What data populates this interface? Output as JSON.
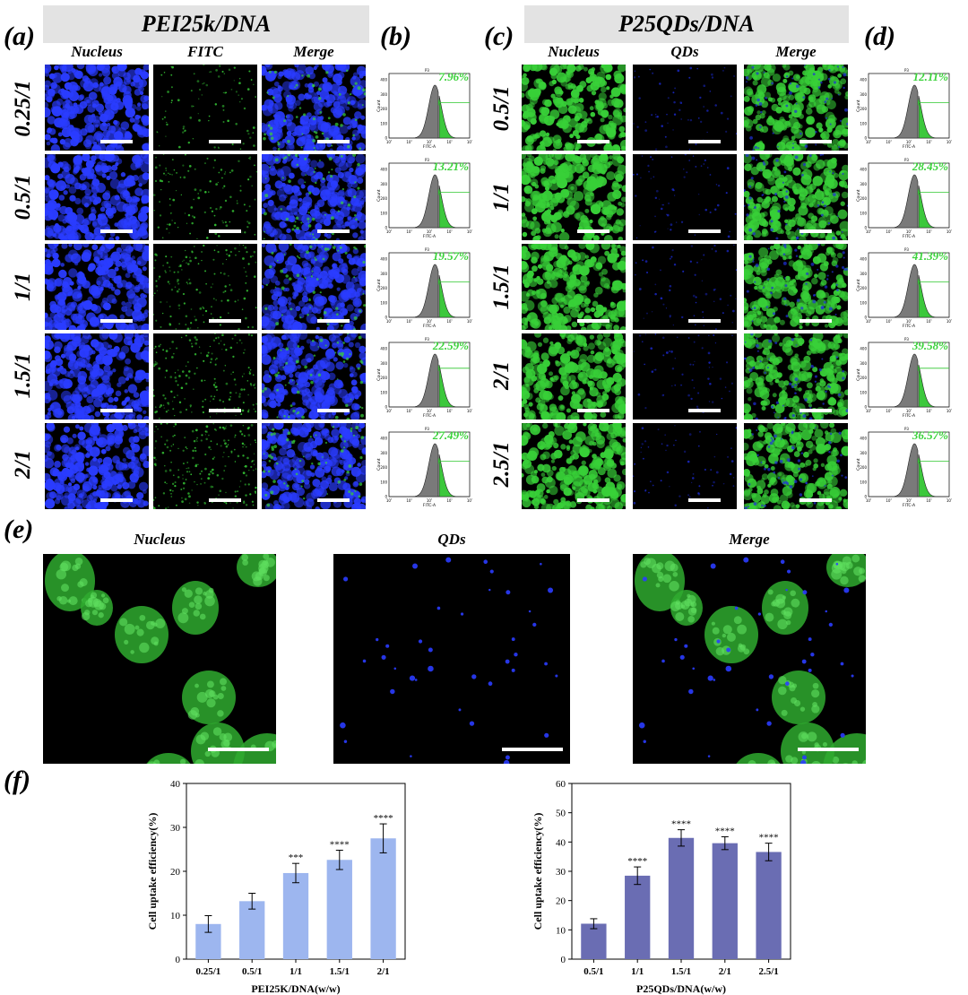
{
  "panels": {
    "a": "(a)",
    "b": "(b)",
    "c": "(c)",
    "d": "(d)",
    "e": "(e)",
    "f": "(f)"
  },
  "groupA": {
    "title": "PEI25k/DNA",
    "columns": [
      "Nucleus",
      "FITC",
      "Merge"
    ],
    "rows": [
      "0.25/1",
      "0.5/1",
      "1/1",
      "1.5/1",
      "2/1"
    ],
    "percents": [
      "7.96%",
      "13.21%",
      "19.57%",
      "22.59%",
      "27.49%"
    ]
  },
  "groupC": {
    "title": "P25QDs/DNA",
    "columns": [
      "Nucleus",
      "QDs",
      "Merge"
    ],
    "rows": [
      "0.5/1",
      "1/1",
      "1.5/1",
      "2/1",
      "2.5/1"
    ],
    "percents": [
      "12.11%",
      "28.45%",
      "41.39%",
      "39.58%",
      "36.57%"
    ]
  },
  "histogram": {
    "xlabel": "FITC-A",
    "ylabel": "Count",
    "gate": "P3",
    "ticks_x": [
      "10³",
      "10⁴",
      "10⁵",
      "10⁶",
      "10⁷"
    ],
    "ticks_y": [
      "0",
      "100",
      "200",
      "300",
      "400"
    ]
  },
  "panelE": {
    "columns": [
      "Nucleus",
      "QDs",
      "Merge"
    ]
  },
  "colors": {
    "blue": "#2a3cff",
    "green": "#38d038",
    "bar1": "#9db6ef",
    "bar2": "#6a6db3",
    "pct": "#3ad23a"
  },
  "chart_data": [
    {
      "type": "bar",
      "categories": [
        "0.25/1",
        "0.5/1",
        "1/1",
        "1.5/1",
        "2/1"
      ],
      "values": [
        8.0,
        13.2,
        19.6,
        22.6,
        27.5
      ],
      "errors": [
        1.9,
        1.8,
        2.2,
        2.2,
        3.3
      ],
      "significance": [
        "",
        "",
        "***",
        "****",
        "****"
      ],
      "xlabel": "PEI25K/DNA(w/w)",
      "ylabel": "Cell uptake efficiency(%)",
      "ylim": [
        0,
        40
      ],
      "yticks": [
        0,
        10,
        20,
        30,
        40
      ],
      "color": "#9db6ef"
    },
    {
      "type": "bar",
      "categories": [
        "0.5/1",
        "1/1",
        "1.5/1",
        "2/1",
        "2.5/1"
      ],
      "values": [
        12.1,
        28.5,
        41.4,
        39.6,
        36.6
      ],
      "errors": [
        1.7,
        3.0,
        2.8,
        2.2,
        3.0
      ],
      "significance": [
        "",
        "****",
        "****",
        "****",
        "****"
      ],
      "xlabel": "P25QDs/DNA(w/w)",
      "ylabel": "Cell uptake efficiency(%)",
      "ylim": [
        0,
        60
      ],
      "yticks": [
        0,
        10,
        20,
        30,
        40,
        50,
        60
      ],
      "color": "#6a6db3"
    }
  ]
}
